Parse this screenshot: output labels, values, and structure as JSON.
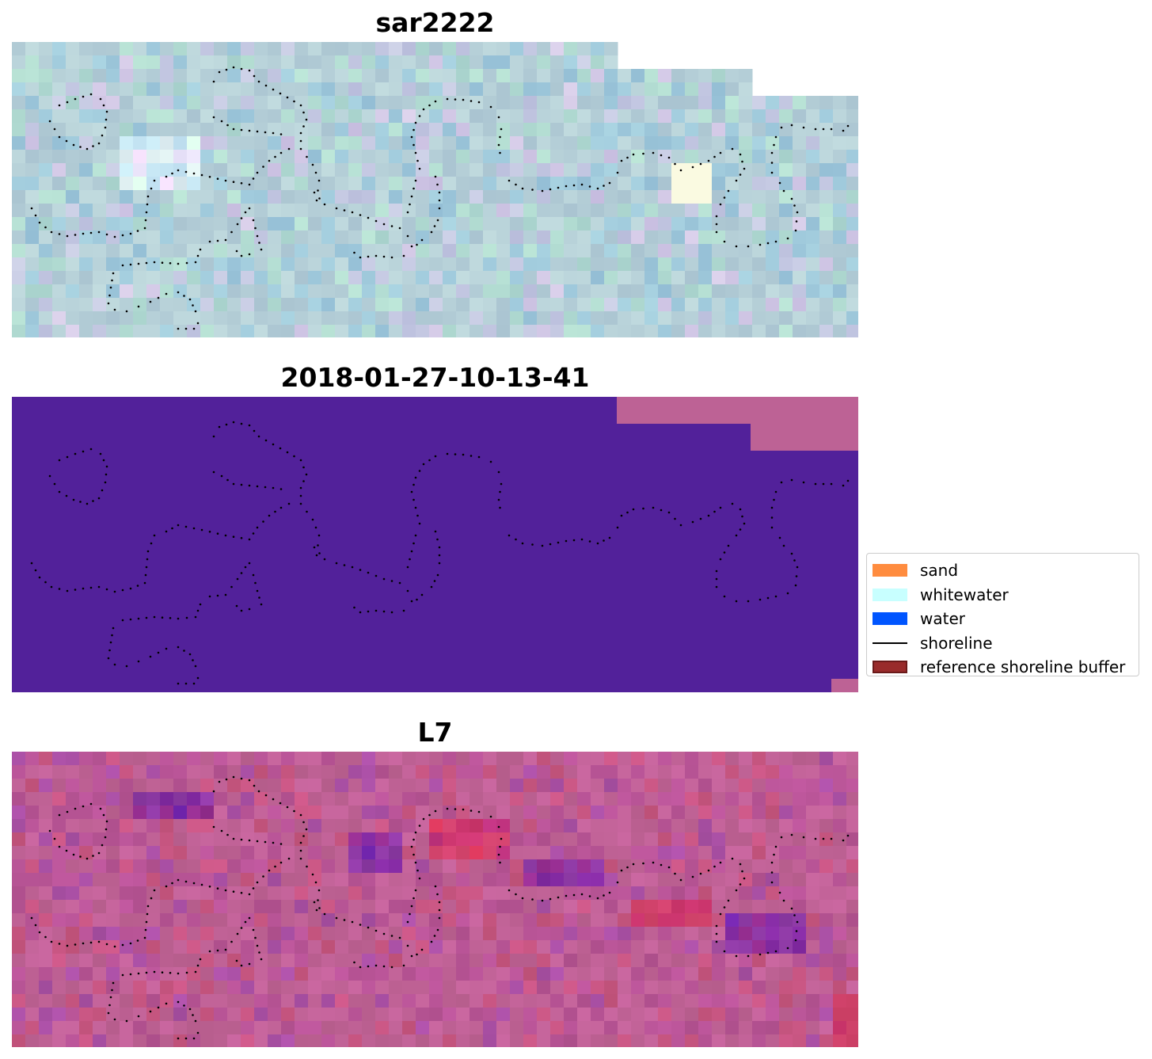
{
  "panels": [
    {
      "title": "sar2222",
      "style": "sar"
    },
    {
      "title": "2018-01-27-10-13-41",
      "style": "class"
    },
    {
      "title": "L7",
      "style": "pink"
    }
  ],
  "legend": {
    "items": [
      {
        "label": "sand",
        "color": "#ff8c3f",
        "kind": "patch"
      },
      {
        "label": "whitewater",
        "color": "#c8ffff",
        "kind": "patch"
      },
      {
        "label": "water",
        "color": "#0055ff",
        "kind": "patch"
      },
      {
        "label": "shoreline",
        "color": "#000000",
        "kind": "line"
      },
      {
        "label": "reference shoreline buffer",
        "color": "#992b2b",
        "kind": "patch"
      }
    ]
  },
  "colors": {
    "classification_background": "#52219a",
    "classification_other": "#bd6295",
    "shoreline_points": "#000000"
  }
}
